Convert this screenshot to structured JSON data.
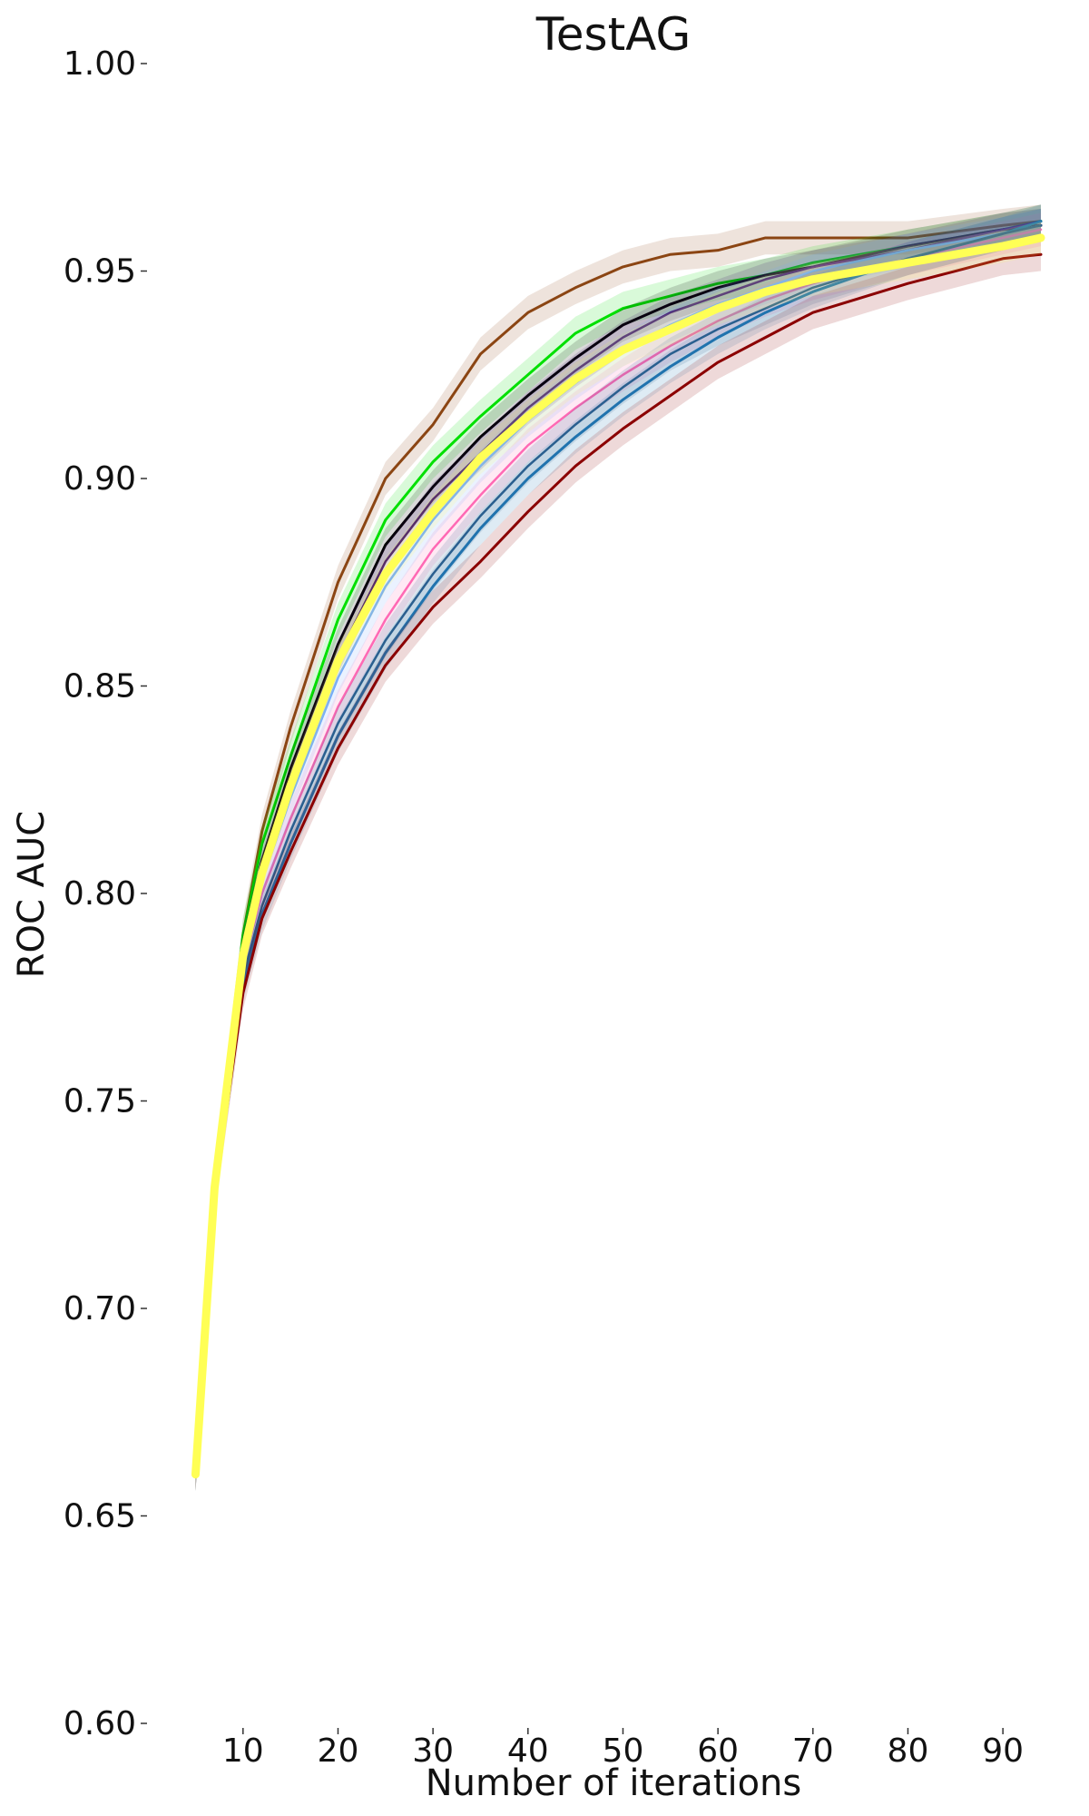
{
  "chart_data": {
    "type": "line",
    "title": "TestAG",
    "xlabel": "Number of iterations",
    "ylabel": "ROC AUC",
    "xlim": [
      4,
      94
    ],
    "ylim": [
      0.6,
      1.0
    ],
    "x_ticks": [
      10,
      20,
      30,
      40,
      50,
      60,
      70,
      80,
      90
    ],
    "x_tick_labels": [
      "10",
      "20",
      "30",
      "40",
      "50",
      "60",
      "70",
      "80",
      "90"
    ],
    "y_ticks": [
      0.6,
      0.65,
      0.7,
      0.75,
      0.8,
      0.85,
      0.9,
      0.95,
      1.0
    ],
    "y_tick_labels": [
      "0.60",
      "0.65",
      "0.70",
      "0.75",
      "0.80",
      "0.85",
      "0.90",
      "0.95",
      "1.00"
    ],
    "grid": false,
    "legend": "none",
    "series": [
      {
        "color": "#8b4513",
        "width": 3,
        "x": [
          5,
          7,
          10,
          12,
          15,
          20,
          25,
          30,
          35,
          40,
          45,
          50,
          55,
          60,
          65,
          70,
          80,
          90,
          94
        ],
        "y": [
          0.66,
          0.73,
          0.79,
          0.815,
          0.84,
          0.875,
          0.9,
          0.913,
          0.93,
          0.94,
          0.946,
          0.951,
          0.954,
          0.955,
          0.958,
          0.958,
          0.958,
          0.961,
          0.962
        ]
      },
      {
        "color": "#00e000",
        "width": 3,
        "x": [
          5,
          7,
          10,
          12,
          15,
          20,
          25,
          30,
          35,
          40,
          45,
          50,
          55,
          60,
          65,
          70,
          80,
          90,
          94
        ],
        "y": [
          0.66,
          0.73,
          0.79,
          0.812,
          0.833,
          0.866,
          0.89,
          0.904,
          0.915,
          0.925,
          0.935,
          0.941,
          0.944,
          0.947,
          0.949,
          0.952,
          0.956,
          0.96,
          0.962
        ]
      },
      {
        "color": "#000000",
        "width": 3,
        "x": [
          5,
          7,
          10,
          12,
          15,
          20,
          25,
          30,
          35,
          40,
          45,
          50,
          55,
          60,
          65,
          70,
          80,
          90,
          94
        ],
        "y": [
          0.66,
          0.73,
          0.788,
          0.808,
          0.83,
          0.86,
          0.884,
          0.898,
          0.91,
          0.92,
          0.929,
          0.937,
          0.942,
          0.946,
          0.949,
          0.951,
          0.956,
          0.96,
          0.961
        ]
      },
      {
        "color": "#3b0a6b",
        "width": 2.5,
        "x": [
          5,
          7,
          10,
          12,
          15,
          20,
          25,
          30,
          35,
          40,
          45,
          50,
          55,
          60,
          65,
          70,
          80,
          90,
          94
        ],
        "y": [
          0.66,
          0.73,
          0.787,
          0.806,
          0.827,
          0.857,
          0.88,
          0.895,
          0.906,
          0.917,
          0.926,
          0.934,
          0.94,
          0.944,
          0.948,
          0.951,
          0.955,
          0.96,
          0.962
        ]
      },
      {
        "color": "#ff69b4",
        "width": 2.5,
        "x": [
          5,
          7,
          10,
          12,
          15,
          20,
          25,
          30,
          35,
          40,
          45,
          50,
          55,
          60,
          65,
          70,
          80,
          90,
          94
        ],
        "y": [
          0.66,
          0.728,
          0.782,
          0.8,
          0.818,
          0.845,
          0.866,
          0.883,
          0.896,
          0.908,
          0.917,
          0.925,
          0.932,
          0.938,
          0.943,
          0.947,
          0.953,
          0.958,
          0.96
        ]
      },
      {
        "color": "#6fa8ff",
        "width": 2.5,
        "x": [
          5,
          7,
          10,
          12,
          15,
          20,
          25,
          30,
          35,
          40,
          45,
          50,
          55,
          60,
          65,
          70,
          80,
          90,
          94
        ],
        "y": [
          0.66,
          0.729,
          0.784,
          0.803,
          0.823,
          0.852,
          0.874,
          0.89,
          0.903,
          0.914,
          0.923,
          0.931,
          0.937,
          0.942,
          0.946,
          0.95,
          0.955,
          0.959,
          0.961
        ]
      },
      {
        "color": "#1f77b4",
        "width": 3,
        "x": [
          5,
          7,
          10,
          12,
          15,
          20,
          25,
          30,
          35,
          40,
          45,
          50,
          55,
          60,
          65,
          70,
          80,
          90,
          94
        ],
        "y": [
          0.66,
          0.727,
          0.778,
          0.795,
          0.812,
          0.838,
          0.858,
          0.874,
          0.888,
          0.9,
          0.91,
          0.919,
          0.927,
          0.934,
          0.94,
          0.945,
          0.953,
          0.959,
          0.962
        ]
      },
      {
        "color": "#2a5f8f",
        "width": 2.5,
        "x": [
          5,
          7,
          10,
          12,
          15,
          20,
          25,
          30,
          35,
          40,
          45,
          50,
          55,
          60,
          65,
          70,
          80,
          90,
          94
        ],
        "y": [
          0.66,
          0.727,
          0.78,
          0.797,
          0.815,
          0.841,
          0.861,
          0.877,
          0.891,
          0.903,
          0.913,
          0.922,
          0.93,
          0.936,
          0.941,
          0.946,
          0.953,
          0.959,
          0.961
        ]
      },
      {
        "color": "#8b0000",
        "width": 3,
        "x": [
          5,
          7,
          10,
          12,
          15,
          20,
          25,
          30,
          35,
          40,
          45,
          50,
          55,
          60,
          65,
          70,
          80,
          90,
          94
        ],
        "y": [
          0.66,
          0.727,
          0.776,
          0.794,
          0.81,
          0.835,
          0.855,
          0.869,
          0.88,
          0.892,
          0.903,
          0.912,
          0.92,
          0.928,
          0.934,
          0.94,
          0.947,
          0.953,
          0.954
        ]
      },
      {
        "color": "#ffff55",
        "width": 9,
        "x": [
          5,
          7,
          10,
          12,
          15,
          20,
          25,
          30,
          35,
          40,
          45,
          50,
          55,
          60,
          65,
          70,
          80,
          90,
          94
        ],
        "y": [
          0.66,
          0.729,
          0.785,
          0.805,
          0.826,
          0.856,
          0.877,
          0.892,
          0.905,
          0.915,
          0.924,
          0.931,
          0.936,
          0.941,
          0.945,
          0.948,
          0.952,
          0.956,
          0.958
        ]
      }
    ]
  }
}
